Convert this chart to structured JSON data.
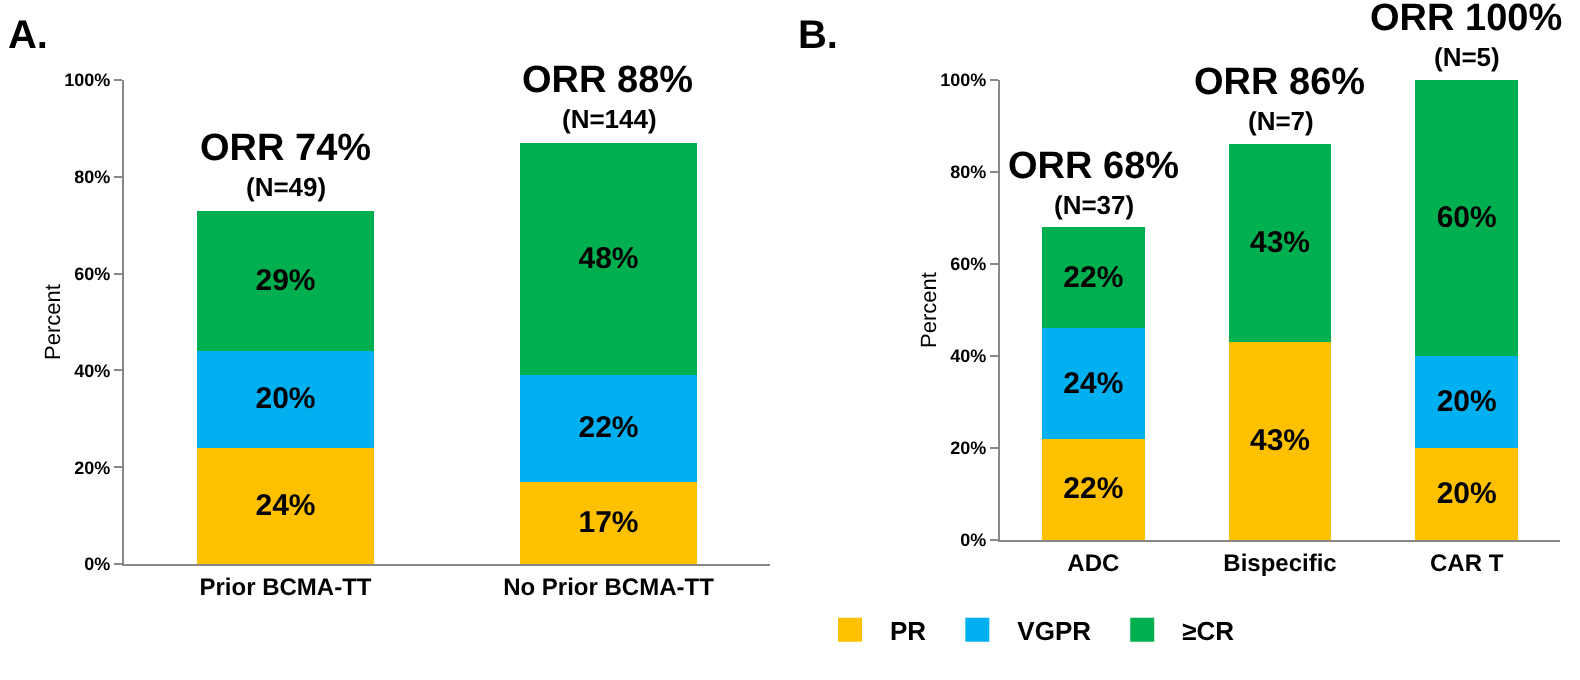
{
  "chart_data": [
    {
      "type": "bar",
      "title": "A.",
      "ylabel": "Percent",
      "categories": [
        "Prior BCMA-TT",
        "No Prior BCMA-TT"
      ],
      "stacked": true,
      "legend": false,
      "grid": false,
      "ylim": [
        0,
        100
      ],
      "yticks": [
        {
          "value": 0,
          "label": "0%"
        },
        {
          "value": 20,
          "label": "20%"
        },
        {
          "value": 40,
          "label": "40%"
        },
        {
          "value": 60,
          "label": "60%"
        },
        {
          "value": 80,
          "label": "80%"
        },
        {
          "value": 100,
          "label": "100%"
        }
      ],
      "series": [
        {
          "color": "#ffc000",
          "values": [
            24,
            17
          ],
          "value_labels": [
            "24%",
            "17%"
          ]
        },
        {
          "color": "#00b0f0",
          "values": [
            20,
            22
          ],
          "value_labels": [
            "20%",
            "22%"
          ]
        },
        {
          "color": "#00b050",
          "values": [
            29,
            48
          ],
          "value_labels": [
            "29%",
            "48%"
          ]
        }
      ],
      "annotations": [
        {
          "text": "ORR 74%",
          "x": "Prior BCMA-TT",
          "y": 73
        },
        {
          "text": "(N=49)",
          "x": "Prior BCMA-TT",
          "y": 73
        },
        {
          "text": "ORR 88%",
          "x": "No Prior BCMA-TT",
          "y": 87
        },
        {
          "text": "(N=144)",
          "x": "No Prior BCMA-TT",
          "y": 87
        }
      ]
    },
    {
      "type": "bar",
      "title": "B.",
      "ylabel": "Percent",
      "categories": [
        "ADC",
        "Bispecific",
        "CAR T"
      ],
      "stacked": true,
      "legend": "bottom",
      "grid": false,
      "ylim": [
        0,
        100
      ],
      "yticks": [
        {
          "value": 0,
          "label": "0%"
        },
        {
          "value": 20,
          "label": "20%"
        },
        {
          "value": 40,
          "label": "40%"
        },
        {
          "value": 60,
          "label": "60%"
        },
        {
          "value": 80,
          "label": "80%"
        },
        {
          "value": 100,
          "label": "100%"
        }
      ],
      "series": [
        {
          "name": "PR",
          "color": "#ffc000",
          "values": [
            22,
            43,
            20
          ],
          "value_labels": [
            "22%",
            "43%",
            "20%"
          ]
        },
        {
          "name": "VGPR",
          "color": "#00b0f0",
          "values": [
            24,
            null,
            20
          ],
          "value_labels": [
            "24%",
            null,
            "20%"
          ]
        },
        {
          "name": "≥CR",
          "color": "#00b050",
          "values": [
            22,
            43,
            60
          ],
          "value_labels": [
            "22%",
            "43%",
            "60%"
          ]
        }
      ],
      "annotations": [
        {
          "text": "ORR 68%",
          "x": "ADC",
          "y": 68
        },
        {
          "text": "(N=37)",
          "x": "ADC",
          "y": 68
        },
        {
          "text": "ORR 86%",
          "x": "Bispecific",
          "y": 86
        },
        {
          "text": "(N=7)",
          "x": "Bispecific",
          "y": 86
        },
        {
          "text": "ORR 100%",
          "x": "CAR T",
          "y": 100
        },
        {
          "text": "(N=5)",
          "x": "CAR T",
          "y": 100
        }
      ]
    }
  ]
}
